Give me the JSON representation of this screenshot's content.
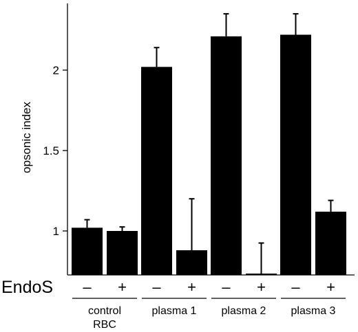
{
  "chart_data": {
    "type": "bar",
    "title": "",
    "ylabel": "opsonic index",
    "xlabel": "",
    "ylim": [
      0.72,
      2.4
    ],
    "yticks": [
      {
        "value": 1,
        "label": "1"
      },
      {
        "value": 1.5,
        "label": "1.5"
      },
      {
        "value": 2,
        "label": "2"
      }
    ],
    "row_label": "EndoS",
    "groups": [
      {
        "label": [
          "control",
          "RBC"
        ],
        "bars": [
          {
            "treatment": "–",
            "value": 1.02,
            "error": 0.05
          },
          {
            "treatment": "+",
            "value": 1.0,
            "error": 0.025
          }
        ]
      },
      {
        "label": [
          "plasma 1"
        ],
        "bars": [
          {
            "treatment": "–",
            "value": 2.02,
            "error": 0.12
          },
          {
            "treatment": "+",
            "value": 0.88,
            "error": 0.32
          }
        ]
      },
      {
        "label": [
          "plasma 2"
        ],
        "bars": [
          {
            "treatment": "–",
            "value": 2.21,
            "error": 0.14
          },
          {
            "treatment": "+",
            "value": 0.735,
            "error": 0.19
          }
        ]
      },
      {
        "label": [
          "plasma 3"
        ],
        "bars": [
          {
            "treatment": "–",
            "value": 2.22,
            "error": 0.13
          },
          {
            "treatment": "+",
            "value": 1.12,
            "error": 0.07
          }
        ]
      }
    ],
    "bar_color": "#000000",
    "grid": false,
    "legend": "none"
  }
}
